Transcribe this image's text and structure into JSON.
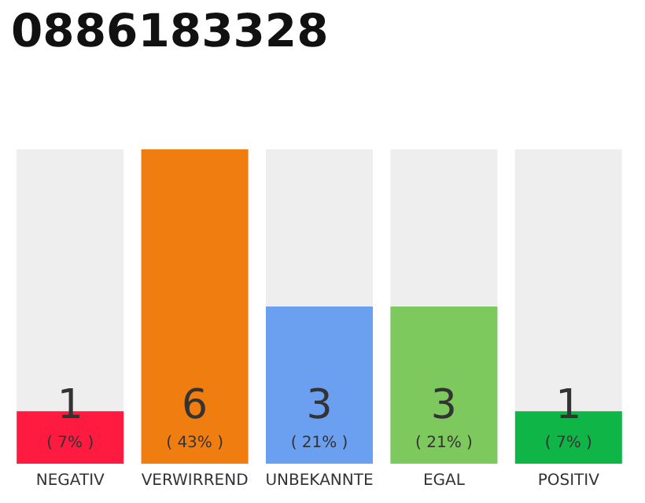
{
  "chart_data": {
    "type": "bar",
    "title": "0886183328",
    "categories": [
      "NEGATIV",
      "VERWIRREND",
      "UNBEKANNTE",
      "EGAL",
      "POSITIV"
    ],
    "values": [
      1,
      6,
      3,
      3,
      1
    ],
    "colors": [
      "#ff1a40",
      "#f07d0f",
      "#6b9ff0",
      "#7dc95e",
      "#10b548"
    ],
    "value_labels": [
      "1\n( 7% )",
      "6\n( 43% )",
      "3\n( 21% )",
      "3\n( 21% )",
      "1\n( 7% )"
    ]
  }
}
